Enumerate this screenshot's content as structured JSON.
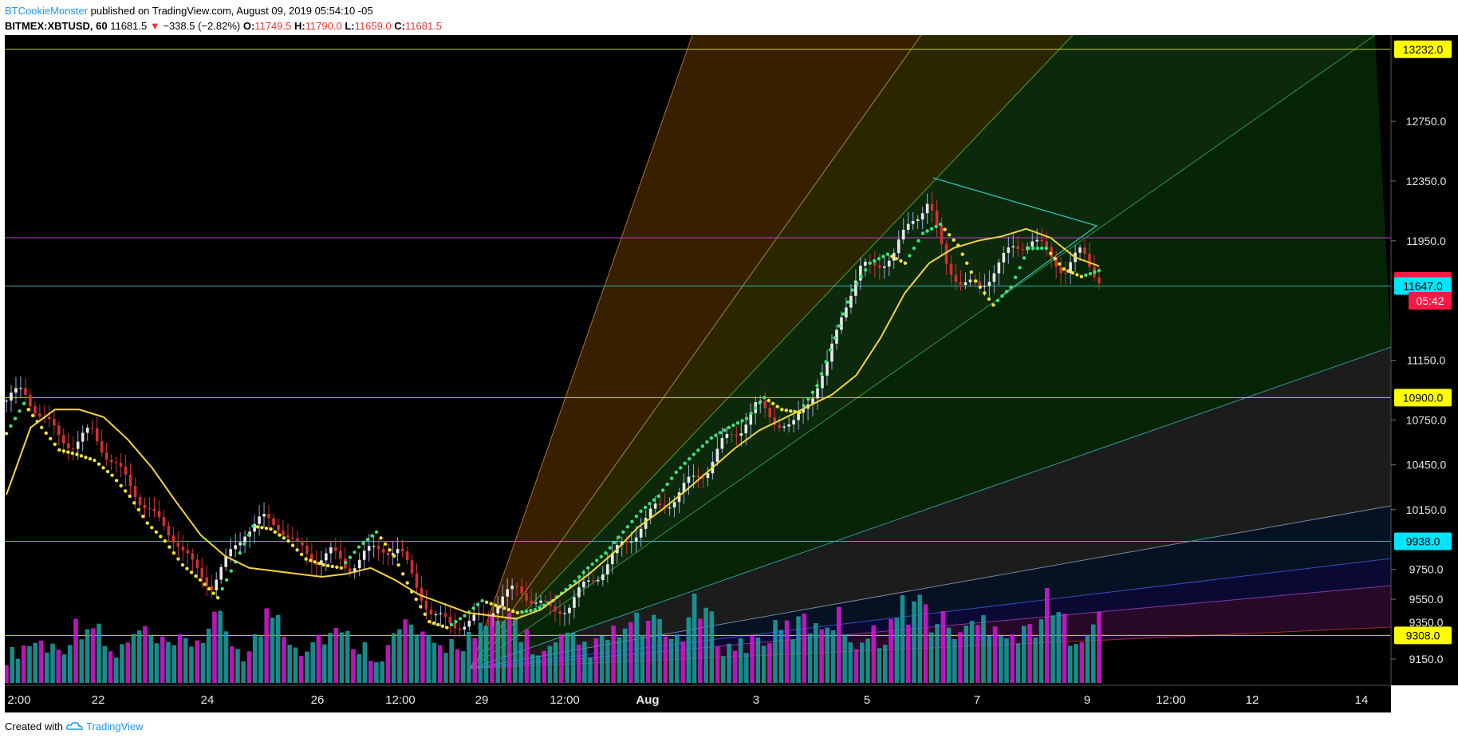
{
  "header": {
    "author": "BTCookieMonster",
    "published_text": "published on TradingView.com, August 09, 2019 05:54:10 -05",
    "ticker": "BITMEX:XBTUSD, 60",
    "last": "11681.5",
    "down_arrow": "▼",
    "change": "−338.5 (−2.82%)",
    "o_label": "O:",
    "o_value": "11749.5",
    "h_label": "H:",
    "h_value": "11790.0",
    "l_label": "L:",
    "l_value": "11659.0",
    "c_label": "C:",
    "c_value": "11681.5"
  },
  "footer": {
    "created_with": "Created with",
    "brand": "TradingView",
    "brand_icon": "tradingview-cloud-icon"
  },
  "colors": {
    "background": "#000000",
    "up": "#26a69a",
    "down": "#e53935",
    "volume_up": "#1aa3a3",
    "volume_down": "#d81bd8",
    "ma_yellow": "#f5d33b",
    "ma_orange": "#f0a030"
  },
  "chart_data": {
    "type": "candlestick",
    "symbol": "BITMEX:XBTUSD",
    "interval": "60",
    "ylim": [
      8950,
      13700
    ],
    "x_ticks": [
      "2:00",
      "22",
      "24",
      "26",
      "12:00",
      "29",
      "12:00",
      "Aug",
      "3",
      "5",
      "7",
      "9",
      "12:00",
      "12",
      "14"
    ],
    "y_ticks": [
      "12750.0",
      "12350.0",
      "11950.0",
      "11150.0",
      "10750.0",
      "10450.0",
      "10150.0",
      "9750.0",
      "9550.0",
      "9150.0"
    ],
    "y_tick_values": [
      12750,
      12350,
      11950,
      11150,
      10750,
      10450,
      10150,
      9750,
      9550,
      9150
    ],
    "price_labels": [
      {
        "text": "13232.0",
        "value": 13232,
        "color": "#ffff00"
      },
      {
        "text": "11681.5",
        "value": 11681.5,
        "color": "#ff1744"
      },
      {
        "text": "11647.0",
        "value": 11647,
        "color": "#00e5ff"
      },
      {
        "text": "10900.0",
        "value": 10900,
        "color": "#ffff00"
      },
      {
        "text": "9938.0",
        "value": 9938,
        "color": "#00e5ff"
      },
      {
        "text": "9308.0",
        "value": 9308,
        "color": "#ffff00"
      }
    ],
    "countdown_label": "05:42",
    "hidden_axis_labels": [
      "1",
      "9350.0"
    ],
    "horizontal_lines": [
      {
        "value": 13232,
        "color": "#c9c935"
      },
      {
        "value": 11970,
        "color": "#c040c0"
      },
      {
        "value": 11647,
        "color": "#36b0b0"
      },
      {
        "value": 10900,
        "color": "#d8d830"
      },
      {
        "value": 9938,
        "color": "#36b0b0"
      },
      {
        "value": 9308,
        "color": "#d8d830"
      }
    ],
    "annotations": [
      "Gann fan",
      "symmetrical triangle"
    ],
    "series": [
      {
        "kind": "candles",
        "values": [
          10880,
          10950,
          10780,
          10650,
          10580,
          10680,
          10500,
          10350,
          10200,
          10050,
          9950,
          9750,
          9650,
          9820,
          10020,
          10080,
          10050,
          9900,
          9820,
          9860,
          9760,
          9850,
          9900,
          9870,
          9660,
          9420,
          9400,
          9380,
          9440,
          9560,
          9620,
          9540,
          9460,
          9520,
          9650,
          9760,
          9900,
          10020,
          10150,
          10220,
          10330,
          10420,
          10600,
          10700,
          10850,
          10760,
          10680,
          10900,
          11070,
          11500,
          11750,
          11800,
          11850,
          12100,
          12200,
          11820,
          11650,
          11640,
          11780,
          11900,
          11960,
          11870,
          11750,
          11880,
          11700
        ]
      },
      {
        "kind": "moving-average-fast",
        "values": [
          10660,
          10860,
          10700,
          10550,
          10520,
          10480,
          10380,
          10240,
          10060,
          9940,
          9780,
          9680,
          9560,
          9800,
          10040,
          10020,
          9940,
          9820,
          9780,
          9760,
          9900,
          10000,
          9840,
          9600,
          9400,
          9360,
          9440,
          9540,
          9500,
          9460,
          9480,
          9540,
          9640,
          9760,
          9860,
          10000,
          10140,
          10240,
          10400,
          10520,
          10630,
          10700,
          10760,
          10900,
          10820,
          10800,
          10980,
          11300,
          11620,
          11800,
          11860,
          11800,
          12000,
          12060,
          11920,
          11680,
          11520,
          11640,
          11900,
          11900,
          11760,
          11710,
          11750
        ]
      },
      {
        "kind": "moving-average-slow",
        "values": [
          10250,
          10700,
          10820,
          10820,
          10770,
          10620,
          10430,
          10200,
          9980,
          9840,
          9760,
          9740,
          9720,
          9700,
          9720,
          9760,
          9680,
          9580,
          9520,
          9460,
          9440,
          9420,
          9480,
          9600,
          9720,
          9860,
          10030,
          10150,
          10280,
          10420,
          10560,
          10680,
          10760,
          10840,
          10920,
          11050,
          11300,
          11600,
          11800,
          11900,
          11950,
          11980,
          12030,
          11970,
          11840,
          11780
        ]
      },
      {
        "kind": "volume",
        "values": [
          0.3,
          0.5,
          0.4,
          0.8,
          0.3,
          0.6,
          0.4,
          0.5,
          0.7,
          0.3,
          0.9,
          0.4,
          0.6,
          0.5,
          0.3,
          0.7,
          0.4,
          0.5,
          0.6,
          0.8,
          0.3,
          0.5,
          0.4,
          0.6,
          0.7,
          0.5,
          0.9,
          0.4,
          0.5,
          0.6,
          0.7,
          0.8,
          0.5,
          0.6,
          1.0,
          0.7,
          0.6,
          0.8,
          0.5,
          0.9,
          0.6,
          0.7
        ]
      }
    ]
  }
}
